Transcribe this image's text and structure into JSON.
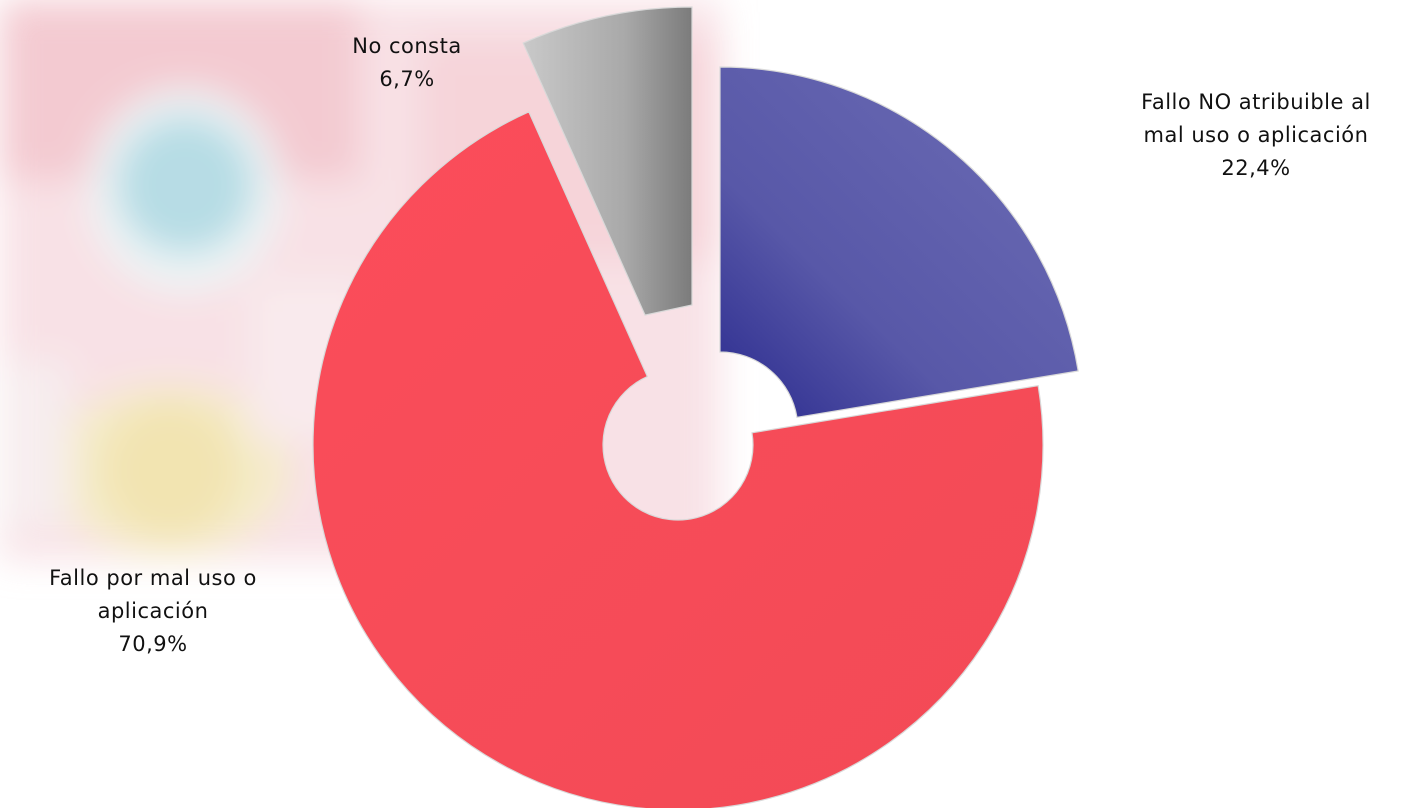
{
  "chart_data": {
    "type": "pie",
    "title": "",
    "slices": [
      {
        "label_lines": [
          "Fallo NO atribuible al",
          "mal uso o aplicación"
        ],
        "value_text": "22,4%",
        "value": 22.4,
        "color": "#5a5aa8"
      },
      {
        "label_lines": [
          "Fallo por mal uso o",
          "aplicación"
        ],
        "value_text": "70,9%",
        "value": 70.9,
        "color": "#f84b58"
      },
      {
        "label_lines": [
          "No consta"
        ],
        "value_text": "6,7%",
        "value": 6.7,
        "color": "#a8a8a8"
      }
    ],
    "legend": "none",
    "style": "exploded doughnut"
  }
}
